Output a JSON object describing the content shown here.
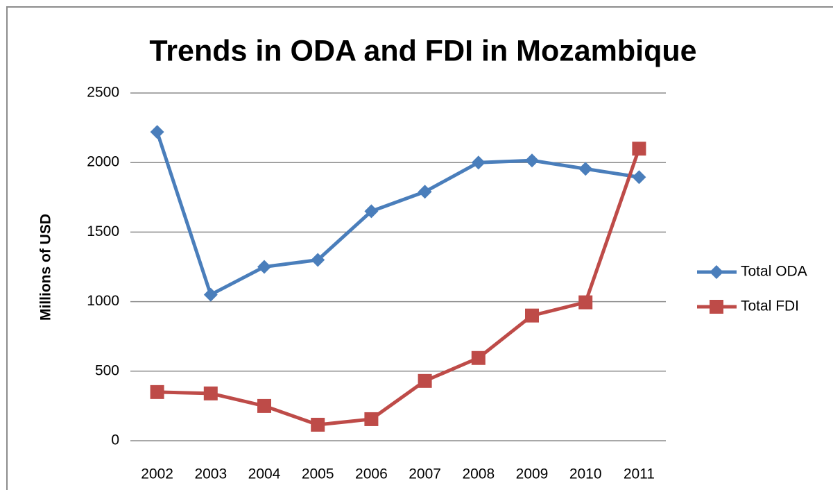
{
  "chart_data": {
    "type": "line",
    "title": "Trends in ODA and FDI in Mozambique",
    "y_label": "Millions of USD",
    "categories": [
      "2002",
      "2003",
      "2004",
      "2005",
      "2006",
      "2007",
      "2008",
      "2009",
      "2010",
      "2011"
    ],
    "series": [
      {
        "name": "Total ODA",
        "color": "#4a7ebb",
        "marker": "diamond",
        "values": [
          2220,
          1050,
          1250,
          1300,
          1650,
          1790,
          2000,
          2015,
          1955,
          1895
        ]
      },
      {
        "name": "Total FDI",
        "color": "#be4b48",
        "marker": "square",
        "values": [
          350,
          340,
          250,
          115,
          155,
          430,
          595,
          900,
          995,
          2100
        ]
      }
    ],
    "ylim": [
      0,
      2500
    ],
    "yticks": [
      0,
      500,
      1000,
      1500,
      2000,
      2500
    ],
    "grid": true,
    "legend": "right"
  }
}
